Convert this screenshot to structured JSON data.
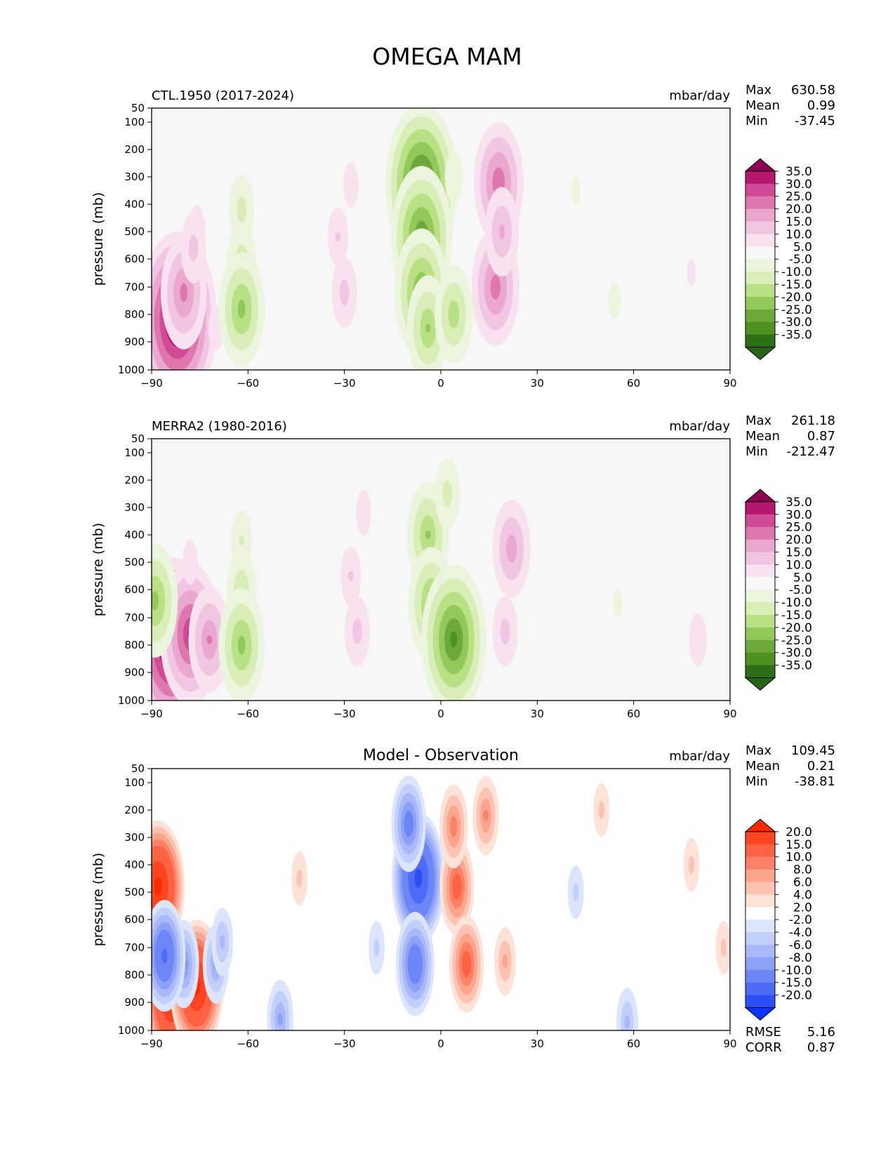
{
  "figure": {
    "title": "OMEGA MAM"
  },
  "chart_data": [
    {
      "type": "heatmap",
      "title": "CTL.1950 (2017-2024)",
      "units": "mbar/day",
      "xlabel": "",
      "ylabel": "pressure (mb)",
      "x_ticks": [
        "−90",
        "−60",
        "−30",
        "0",
        "30",
        "60",
        "90"
      ],
      "y_ticks": [
        "50",
        "100",
        "200",
        "300",
        "400",
        "500",
        "600",
        "700",
        "800",
        "900",
        "1000"
      ],
      "xlim": [
        -90,
        90
      ],
      "ylim": [
        1000,
        50
      ],
      "stats": {
        "max_label": "Max",
        "max": "630.58",
        "mean_label": "Mean",
        "mean": "0.99",
        "min_label": "Min",
        "min": "-37.45"
      },
      "colorbar": {
        "levels": [
          "35.0",
          "30.0",
          "25.0",
          "20.0",
          "15.0",
          "10.0",
          "5.0",
          "-5.0",
          "-10.0",
          "-15.0",
          "-20.0",
          "-25.0",
          "-30.0",
          "-35.0"
        ],
        "colors": [
          "#8e0152",
          "#b5186d",
          "#d04b96",
          "#de77ae",
          "#eaa8cf",
          "#f1c6e2",
          "#f8e2f0",
          "#f7f7f7",
          "#ebf5dd",
          "#d8eeb6",
          "#b8e186",
          "#93c95b",
          "#6ea83b",
          "#4d9221",
          "#2d6e17",
          "#276419"
        ]
      },
      "features": [
        {
          "lat": -82,
          "p": 820,
          "v": 40
        },
        {
          "lat": -80,
          "p": 720,
          "v": 22
        },
        {
          "lat": -76,
          "p": 500,
          "v": 9
        },
        {
          "lat": -77,
          "p": 560,
          "v": 12
        },
        {
          "lat": -70,
          "p": 850,
          "v": 8
        },
        {
          "lat": -62,
          "p": 620,
          "v": -14
        },
        {
          "lat": -62,
          "p": 780,
          "v": -22
        },
        {
          "lat": -62,
          "p": 420,
          "v": -12
        },
        {
          "lat": -32,
          "p": 520,
          "v": 10
        },
        {
          "lat": -30,
          "p": 720,
          "v": 12
        },
        {
          "lat": -28,
          "p": 330,
          "v": 8
        },
        {
          "lat": -6,
          "p": 330,
          "v": -36
        },
        {
          "lat": -6,
          "p": 520,
          "v": -30
        },
        {
          "lat": -6,
          "p": 720,
          "v": -26
        },
        {
          "lat": -4,
          "p": 850,
          "v": -20
        },
        {
          "lat": 4,
          "p": 800,
          "v": -18
        },
        {
          "lat": 4,
          "p": 300,
          "v": -9
        },
        {
          "lat": 18,
          "p": 320,
          "v": 24
        },
        {
          "lat": 17,
          "p": 700,
          "v": 23
        },
        {
          "lat": 19,
          "p": 500,
          "v": 16
        },
        {
          "lat": 42,
          "p": 350,
          "v": -6
        },
        {
          "lat": 54,
          "p": 750,
          "v": -7
        },
        {
          "lat": 78,
          "p": 650,
          "v": 6
        }
      ]
    },
    {
      "type": "heatmap",
      "title": "MERRA2 (1980-2016)",
      "units": "mbar/day",
      "xlabel": "",
      "ylabel": "pressure (mb)",
      "x_ticks": [
        "−90",
        "−60",
        "−30",
        "0",
        "30",
        "60",
        "90"
      ],
      "y_ticks": [
        "50",
        "100",
        "200",
        "300",
        "400",
        "500",
        "600",
        "700",
        "800",
        "900",
        "1000"
      ],
      "xlim": [
        -90,
        90
      ],
      "ylim": [
        1000,
        50
      ],
      "stats": {
        "max_label": "Max",
        "max": "261.18",
        "mean_label": "Mean",
        "mean": "0.87",
        "min_label": "Min",
        "min": "-212.47"
      },
      "colorbar": {
        "levels": [
          "35.0",
          "30.0",
          "25.0",
          "20.0",
          "15.0",
          "10.0",
          "5.0",
          "-5.0",
          "-10.0",
          "-15.0",
          "-20.0",
          "-25.0",
          "-30.0",
          "-35.0"
        ],
        "colors": [
          "#8e0152",
          "#b5186d",
          "#d04b96",
          "#de77ae",
          "#eaa8cf",
          "#f1c6e2",
          "#f8e2f0",
          "#f7f7f7",
          "#ebf5dd",
          "#d8eeb6",
          "#b8e186",
          "#93c95b",
          "#6ea83b",
          "#4d9221",
          "#2d6e17",
          "#276419"
        ]
      },
      "features": [
        {
          "lat": -84,
          "p": 800,
          "v": 40
        },
        {
          "lat": -78,
          "p": 760,
          "v": 30
        },
        {
          "lat": -72,
          "p": 780,
          "v": 20
        },
        {
          "lat": -78,
          "p": 500,
          "v": 8
        },
        {
          "lat": -89,
          "p": 640,
          "v": -22
        },
        {
          "lat": -62,
          "p": 600,
          "v": -14
        },
        {
          "lat": -62,
          "p": 800,
          "v": -22
        },
        {
          "lat": -62,
          "p": 420,
          "v": -10
        },
        {
          "lat": -28,
          "p": 550,
          "v": 10
        },
        {
          "lat": -26,
          "p": 750,
          "v": 12
        },
        {
          "lat": -24,
          "p": 320,
          "v": 8
        },
        {
          "lat": -4,
          "p": 400,
          "v": -20
        },
        {
          "lat": -3,
          "p": 650,
          "v": -22
        },
        {
          "lat": 4,
          "p": 780,
          "v": -32
        },
        {
          "lat": 2,
          "p": 250,
          "v": -12
        },
        {
          "lat": 22,
          "p": 450,
          "v": 18
        },
        {
          "lat": 20,
          "p": 750,
          "v": 12
        },
        {
          "lat": 55,
          "p": 650,
          "v": -6
        },
        {
          "lat": 80,
          "p": 780,
          "v": 9
        }
      ]
    },
    {
      "type": "heatmap",
      "title": "Model - Observation",
      "units": "mbar/day",
      "xlabel": "",
      "ylabel": "pressure (mb)",
      "x_ticks": [
        "−90",
        "−60",
        "−30",
        "0",
        "30",
        "60",
        "90"
      ],
      "y_ticks": [
        "50",
        "100",
        "200",
        "300",
        "400",
        "500",
        "600",
        "700",
        "800",
        "900",
        "1000"
      ],
      "xlim": [
        -90,
        90
      ],
      "ylim": [
        1000,
        50
      ],
      "stats": {
        "max_label": "Max",
        "max": "109.45",
        "mean_label": "Mean",
        "mean": "0.21",
        "min_label": "Min",
        "min": "-38.81"
      },
      "metrics": {
        "rmse_label": "RMSE",
        "rmse": "5.16",
        "corr_label": "CORR",
        "corr": "0.87"
      },
      "colorbar": {
        "levels": [
          "20.0",
          "15.0",
          "10.0",
          "8.0",
          "6.0",
          "4.0",
          "2.0",
          "-2.0",
          "-4.0",
          "-6.0",
          "-8.0",
          "-10.0",
          "-15.0",
          "-20.0"
        ],
        "colors": [
          "#ff2a00",
          "#ff4520",
          "#fd6242",
          "#fc8166",
          "#fca58d",
          "#fcc3b2",
          "#fde2d8",
          "#ffffff",
          "#dde4fd",
          "#c3cffb",
          "#a8b8f8",
          "#8ca2f6",
          "#6c86f5",
          "#4d6bf6",
          "#2c4ff8",
          "#0a33fb"
        ]
      },
      "features": [
        {
          "lat": -88,
          "p": 480,
          "v": 22
        },
        {
          "lat": -84,
          "p": 880,
          "v": 22
        },
        {
          "lat": -76,
          "p": 840,
          "v": 22
        },
        {
          "lat": -80,
          "p": 760,
          "v": -10
        },
        {
          "lat": -86,
          "p": 730,
          "v": -16
        },
        {
          "lat": -70,
          "p": 760,
          "v": -8
        },
        {
          "lat": -68,
          "p": 680,
          "v": -6
        },
        {
          "lat": -50,
          "p": 960,
          "v": -8
        },
        {
          "lat": -44,
          "p": 450,
          "v": 4
        },
        {
          "lat": -20,
          "p": 700,
          "v": -4
        },
        {
          "lat": -7,
          "p": 450,
          "v": -22
        },
        {
          "lat": -10,
          "p": 250,
          "v": -12
        },
        {
          "lat": -8,
          "p": 760,
          "v": -14
        },
        {
          "lat": 5,
          "p": 480,
          "v": 12
        },
        {
          "lat": 4,
          "p": 260,
          "v": 9
        },
        {
          "lat": 8,
          "p": 760,
          "v": 12
        },
        {
          "lat": 14,
          "p": 220,
          "v": 8
        },
        {
          "lat": 20,
          "p": 750,
          "v": 6
        },
        {
          "lat": 42,
          "p": 500,
          "v": -4
        },
        {
          "lat": 50,
          "p": 200,
          "v": 4
        },
        {
          "lat": 58,
          "p": 970,
          "v": -6
        },
        {
          "lat": 78,
          "p": 400,
          "v": 4
        },
        {
          "lat": 88,
          "p": 700,
          "v": 4
        }
      ]
    }
  ]
}
